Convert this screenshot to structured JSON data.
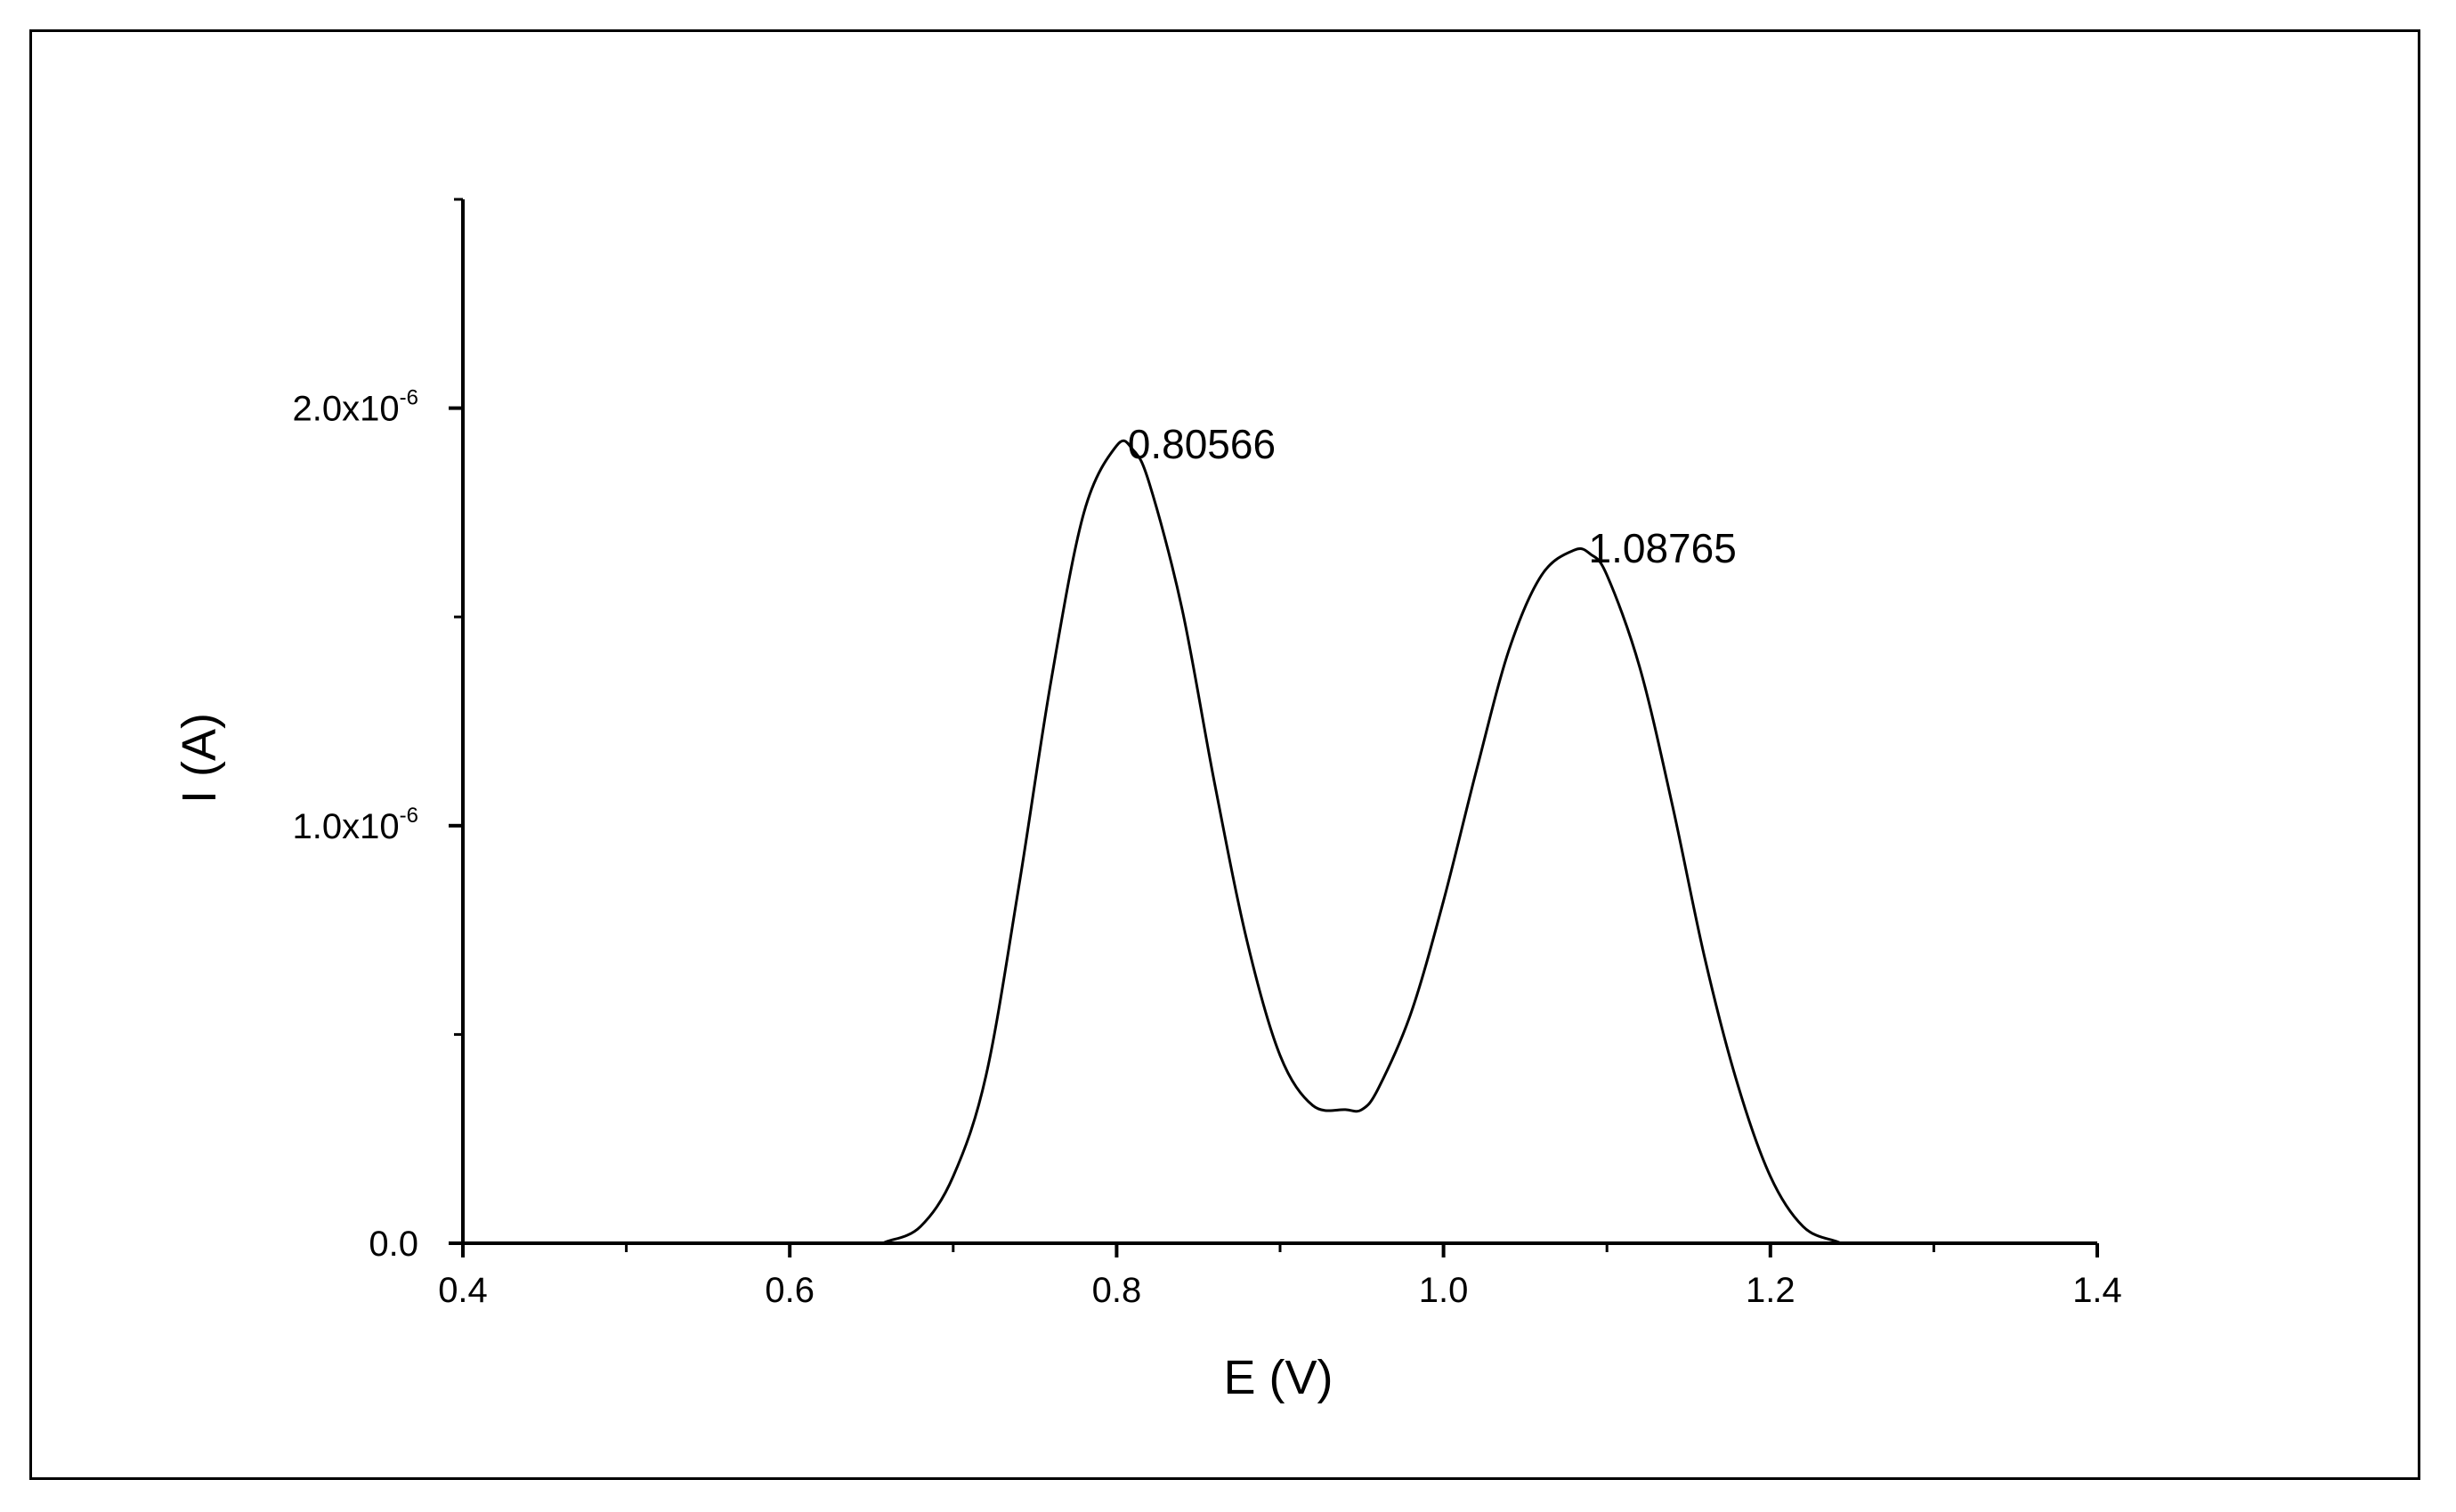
{
  "chart_data": {
    "type": "line",
    "xlabel": "E (V)",
    "ylabel": "I (A)",
    "xlim": [
      0.4,
      1.4
    ],
    "ylim": [
      0,
      2.5e-06
    ],
    "x_ticks": [
      {
        "value": 0.4,
        "label": "0.4"
      },
      {
        "value": 0.6,
        "label": "0.6"
      },
      {
        "value": 0.8,
        "label": "0.8"
      },
      {
        "value": 1.0,
        "label": "1.0"
      },
      {
        "value": 1.2,
        "label": "1.2"
      },
      {
        "value": 1.4,
        "label": "1.4"
      }
    ],
    "x_minor_ticks": [
      0.5,
      0.7,
      0.9,
      1.1,
      1.3
    ],
    "y_ticks": [
      {
        "value": 0,
        "label": "0.0",
        "exponent": ""
      },
      {
        "value": 1e-06,
        "label": "1.0x10",
        "exponent": "-6"
      },
      {
        "value": 2e-06,
        "label": "2.0x10",
        "exponent": "-6"
      }
    ],
    "y_minor_ticks": [
      5e-07,
      1.5e-06,
      2.5e-06
    ],
    "grid": false,
    "series": [
      {
        "color": "#000000",
        "x": [
          0.4,
          0.5,
          0.6,
          0.65,
          0.66,
          0.68,
          0.7,
          0.72,
          0.74,
          0.76,
          0.78,
          0.8,
          0.81,
          0.82,
          0.84,
          0.86,
          0.88,
          0.9,
          0.92,
          0.94,
          0.95,
          0.96,
          0.98,
          1.0,
          1.02,
          1.04,
          1.06,
          1.08,
          1.09,
          1.1,
          1.12,
          1.14,
          1.16,
          1.18,
          1.2,
          1.22,
          1.24,
          1.25,
          1.3,
          1.4
        ],
        "y": [
          0,
          0,
          0,
          0,
          5e-09,
          4e-08,
          1.6e-07,
          4e-07,
          8.5e-07,
          1.35e-06,
          1.75e-06,
          1.91e-06,
          1.9e-06,
          1.82e-06,
          1.52e-06,
          1.1e-06,
          7.2e-07,
          4.5e-07,
          3.3e-07,
          3.2e-07,
          3.2e-07,
          3.7e-07,
          5.5e-07,
          8.2e-07,
          1.13e-06,
          1.42e-06,
          1.6e-06,
          1.66e-06,
          1.65e-06,
          1.6e-06,
          1.38e-06,
          1.05e-06,
          6.8e-07,
          3.8e-07,
          1.6e-07,
          4e-08,
          5e-09,
          0,
          0,
          0
        ]
      }
    ],
    "annotations": [
      {
        "text": "0.80566",
        "x": 0.80566,
        "y": 1.91e-06
      },
      {
        "text": "1.08765",
        "x": 1.08765,
        "y": 1.66e-06
      }
    ]
  }
}
